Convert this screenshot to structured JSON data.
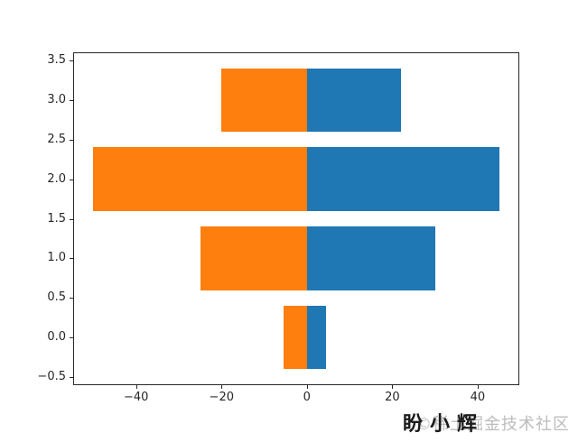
{
  "chart_data": {
    "type": "bar",
    "orientation": "horizontal",
    "diverging": true,
    "title": "",
    "xlabel": "",
    "ylabel": "",
    "grid": false,
    "legend": null,
    "categories": [
      0,
      1,
      2,
      3
    ],
    "series": [
      {
        "name": "negative",
        "color": "#ff7f0e",
        "values": [
          -5.5,
          -25,
          -50,
          -20
        ]
      },
      {
        "name": "positive",
        "color": "#1f77b4",
        "values": [
          4.5,
          30,
          45,
          22
        ]
      }
    ],
    "bar_height": 0.8,
    "xlim": [
      -54.75,
      49.75
    ],
    "ylim": [
      -0.6,
      3.6
    ],
    "x_ticks": [
      -40,
      -20,
      0,
      20,
      40
    ],
    "x_tick_labels": [
      "−40",
      "−20",
      "0",
      "20",
      "40"
    ],
    "y_ticks": [
      3.5,
      3.0,
      2.5,
      2.0,
      1.5,
      1.0,
      0.5,
      0.0,
      -0.5
    ],
    "y_tick_labels": [
      "3.5",
      "3.0",
      "2.5",
      "2.0",
      "1.5",
      "1.0",
      "0.5",
      "0.0",
      "−0.5"
    ],
    "axis_color": "#262626",
    "background_color": "#ffffff"
  },
  "watermark": {
    "author_text": "盼小辉",
    "author_color": "#1c1c1c",
    "community_text": "©稀土掘金技术社区",
    "community_color": "#bcbcbc"
  }
}
